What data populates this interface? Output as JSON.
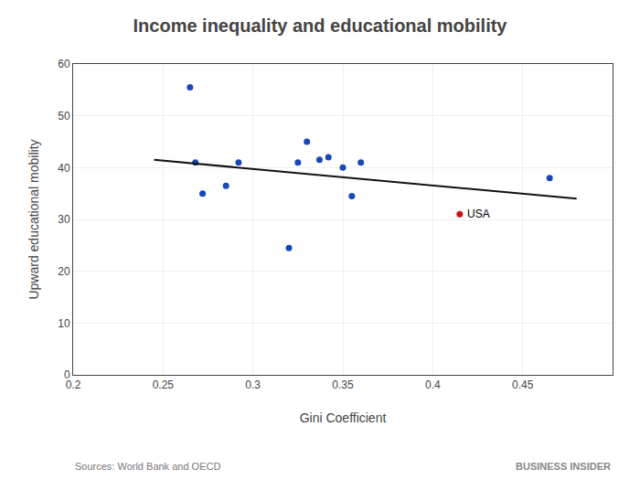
{
  "chart_data": {
    "type": "scatter",
    "title": "Income inequality and educational mobility",
    "xlabel": "Gini Coefficient",
    "ylabel": "Upward educational mobility",
    "xlim": [
      0.2,
      0.5
    ],
    "ylim": [
      0,
      60
    ],
    "xticks": [
      0.2,
      0.25,
      0.3,
      0.35,
      0.4,
      0.45
    ],
    "yticks": [
      0,
      10,
      20,
      30,
      40,
      50,
      60
    ],
    "grid": true,
    "series": [
      {
        "type": "scatter",
        "color": "#1a47b8",
        "x": [
          0.265,
          0.268,
          0.272,
          0.285,
          0.292,
          0.32,
          0.325,
          0.33,
          0.337,
          0.342,
          0.35,
          0.355,
          0.36,
          0.465
        ],
        "values": [
          55.5,
          41.0,
          35.0,
          36.5,
          41.0,
          24.5,
          41.0,
          45.0,
          41.5,
          42.0,
          40.0,
          34.5,
          41.0,
          38.0
        ]
      },
      {
        "type": "scatter",
        "color": "#cc1111",
        "x": [
          0.415
        ],
        "values": [
          31.0
        ]
      },
      {
        "type": "line",
        "color": "#111111",
        "x": [
          0.245,
          0.48
        ],
        "values": [
          41.5,
          34.0
        ]
      }
    ],
    "annotations": [
      {
        "text": "USA",
        "x": 0.415,
        "y": 31.0
      },
      {
        "text": "Sources: World Bank and OECD"
      },
      {
        "text": "BUSINESS INSIDER"
      }
    ]
  }
}
